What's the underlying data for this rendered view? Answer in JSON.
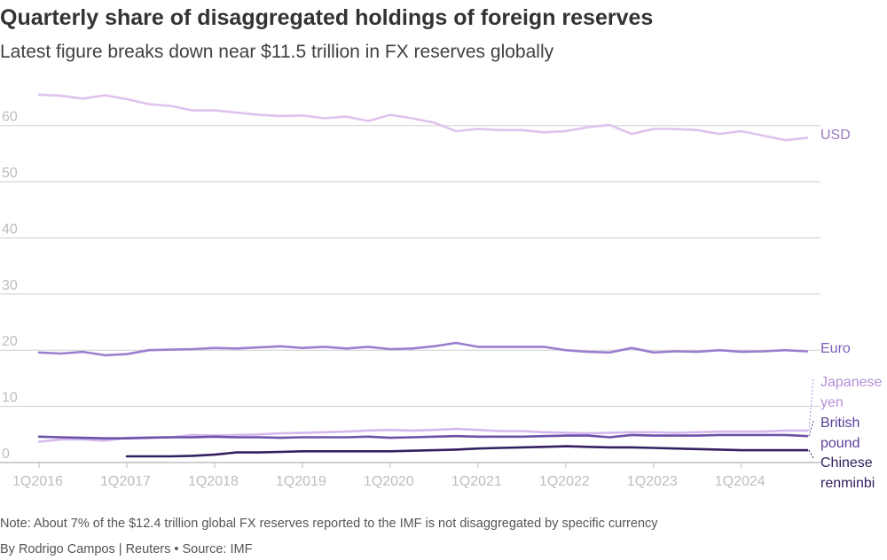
{
  "header": {
    "title": "Quarterly share of disaggregated holdings of foreign reserves",
    "subtitle": "Latest figure breaks down near $11.5 trillion in FX reserves globally"
  },
  "footer": {
    "note": "Note: About 7% of the $12.4 trillion global FX reserves reported to the IMF is not disaggregated by specific currency",
    "credit": "By Rodrigo Campos | Reuters • Source: IMF"
  },
  "chart_data": {
    "type": "line",
    "title": "Quarterly share of disaggregated holdings of foreign reserves",
    "subtitle": "Latest figure breaks down near $11.5 trillion in FX reserves globally",
    "xlabel": "",
    "ylabel": "",
    "ylim": [
      0,
      65
    ],
    "yticks": [
      0,
      10,
      20,
      30,
      40,
      50,
      60
    ],
    "ytick_labels": [
      "0",
      "10",
      "20",
      "30",
      "40",
      "50",
      "60"
    ],
    "grid": true,
    "x": [
      "1Q2016",
      "2Q2016",
      "3Q2016",
      "4Q2016",
      "1Q2017",
      "2Q2017",
      "3Q2017",
      "4Q2017",
      "1Q2018",
      "2Q2018",
      "3Q2018",
      "4Q2018",
      "1Q2019",
      "2Q2019",
      "3Q2019",
      "4Q2019",
      "1Q2020",
      "2Q2020",
      "3Q2020",
      "4Q2020",
      "1Q2021",
      "2Q2021",
      "3Q2021",
      "4Q2021",
      "1Q2022",
      "2Q2022",
      "3Q2022",
      "4Q2022",
      "1Q2023",
      "2Q2023",
      "3Q2023",
      "4Q2023",
      "1Q2024",
      "2Q2024",
      "3Q2024",
      "4Q2024"
    ],
    "xtick_labels": [
      "1Q2016",
      "1Q2017",
      "1Q2018",
      "1Q2019",
      "1Q2020",
      "1Q2021",
      "1Q2022",
      "1Q2023",
      "1Q2024"
    ],
    "series": [
      {
        "name": "USD",
        "color": "#e0c2ee",
        "label_lines": [
          "USD"
        ],
        "label_color": "#9a7cbf",
        "values": [
          65.5,
          65.3,
          64.8,
          65.4,
          64.7,
          63.8,
          63.5,
          62.7,
          62.7,
          62.3,
          61.9,
          61.7,
          61.8,
          61.3,
          61.6,
          60.8,
          61.9,
          61.3,
          60.5,
          59.0,
          59.4,
          59.2,
          59.2,
          58.8,
          59.0,
          59.7,
          60.1,
          58.5,
          59.4,
          59.4,
          59.2,
          58.5,
          59.0,
          58.2,
          57.4,
          57.8
        ]
      },
      {
        "name": "Euro",
        "color": "#9b7fcf",
        "label_lines": [
          "Euro"
        ],
        "label_color": "#7a5fb8",
        "values": [
          19.6,
          19.4,
          19.7,
          19.1,
          19.3,
          20.0,
          20.1,
          20.2,
          20.4,
          20.3,
          20.5,
          20.7,
          20.4,
          20.6,
          20.3,
          20.6,
          20.2,
          20.3,
          20.7,
          21.3,
          20.6,
          20.6,
          20.6,
          20.6,
          20.0,
          19.7,
          19.6,
          20.4,
          19.6,
          19.8,
          19.7,
          20.0,
          19.7,
          19.8,
          20.0,
          19.8
        ]
      },
      {
        "name": "Japanese yen",
        "color": "#d6b8ee",
        "label_lines": [
          "Japanese",
          "yen"
        ],
        "label_color": "#b38fd6",
        "values": [
          3.7,
          4.1,
          4.1,
          3.9,
          4.4,
          4.5,
          4.5,
          4.9,
          4.8,
          4.9,
          5.0,
          5.2,
          5.3,
          5.4,
          5.5,
          5.7,
          5.8,
          5.7,
          5.8,
          6.0,
          5.8,
          5.6,
          5.6,
          5.4,
          5.3,
          5.2,
          5.3,
          5.4,
          5.4,
          5.3,
          5.4,
          5.5,
          5.5,
          5.5,
          5.7,
          5.7
        ]
      },
      {
        "name": "British pound",
        "color": "#6c52a8",
        "label_lines": [
          "British",
          "pound"
        ],
        "label_color": "#5a3f99",
        "values": [
          4.6,
          4.5,
          4.4,
          4.3,
          4.3,
          4.4,
          4.5,
          4.5,
          4.6,
          4.5,
          4.5,
          4.4,
          4.5,
          4.5,
          4.5,
          4.6,
          4.4,
          4.5,
          4.6,
          4.7,
          4.6,
          4.6,
          4.6,
          4.7,
          4.8,
          4.8,
          4.5,
          4.9,
          4.8,
          4.8,
          4.8,
          4.9,
          4.9,
          4.9,
          4.9,
          4.7
        ]
      },
      {
        "name": "Chinese renminbi",
        "color": "#33205f",
        "label_lines": [
          "Chinese",
          "renminbi"
        ],
        "label_color": "#33205f",
        "values": [
          null,
          null,
          null,
          null,
          1.1,
          1.1,
          1.1,
          1.2,
          1.4,
          1.8,
          1.8,
          1.9,
          2.0,
          2.0,
          2.0,
          2.0,
          2.0,
          2.1,
          2.2,
          2.3,
          2.5,
          2.6,
          2.7,
          2.8,
          2.9,
          2.8,
          2.7,
          2.7,
          2.6,
          2.5,
          2.4,
          2.3,
          2.2,
          2.2,
          2.2,
          2.2
        ]
      }
    ]
  }
}
